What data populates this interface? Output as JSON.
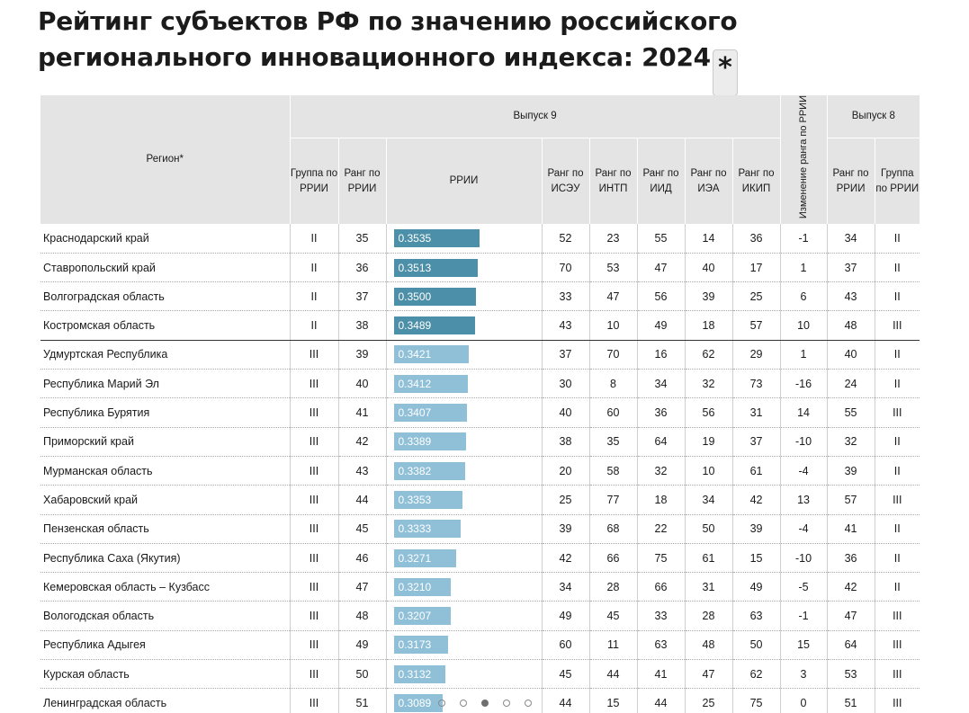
{
  "title": "Рейтинг субъектов РФ по значению российского регионального инновационного индекса: 2024",
  "title_asterisk": "*",
  "colors": {
    "group_ii": "#4c8fa8",
    "group_iii": "#8fc0d8",
    "header_bg": "#e4e4e4"
  },
  "header": {
    "region": "Регион*",
    "issue9": "Выпуск 9",
    "issue8": "Выпуск 8",
    "change": "Изменение ранга по РРИИ",
    "columns": [
      "Группа по РРИИ",
      "Ранг по РРИИ",
      "РРИИ",
      "Ранг по ИСЭУ",
      "Ранг по ИНТП",
      "Ранг по ИИД",
      "Ранг по ИЭА",
      "Ранг по ИКИП"
    ],
    "issue8_columns": [
      "Ранг по РРИИ",
      "Группа по РРИИ"
    ]
  },
  "rows": [
    {
      "region": "Краснодарский край",
      "group": "II",
      "rank": "35",
      "rrii": "0.3535",
      "value": 0.3535,
      "iseu": "52",
      "intp": "23",
      "iid": "55",
      "iea": "14",
      "ikip": "36",
      "change": "-1",
      "rank8": "34",
      "group8": "II"
    },
    {
      "region": "Ставропольский край",
      "group": "II",
      "rank": "36",
      "rrii": "0.3513",
      "value": 0.3513,
      "iseu": "70",
      "intp": "53",
      "iid": "47",
      "iea": "40",
      "ikip": "17",
      "change": "1",
      "rank8": "37",
      "group8": "II"
    },
    {
      "region": "Волгоградская область",
      "group": "II",
      "rank": "37",
      "rrii": "0.3500",
      "value": 0.35,
      "iseu": "33",
      "intp": "47",
      "iid": "56",
      "iea": "39",
      "ikip": "25",
      "change": "6",
      "rank8": "43",
      "group8": "II"
    },
    {
      "region": "Костромская область",
      "group": "II",
      "rank": "38",
      "rrii": "0.3489",
      "value": 0.3489,
      "iseu": "43",
      "intp": "10",
      "iid": "49",
      "iea": "18",
      "ikip": "57",
      "change": "10",
      "rank8": "48",
      "group8": "III"
    },
    {
      "region": "Удмуртская Республика",
      "group": "III",
      "rank": "39",
      "rrii": "0.3421",
      "value": 0.3421,
      "iseu": "37",
      "intp": "70",
      "iid": "16",
      "iea": "62",
      "ikip": "29",
      "change": "1",
      "rank8": "40",
      "group8": "II"
    },
    {
      "region": "Республика Марий Эл",
      "group": "III",
      "rank": "40",
      "rrii": "0.3412",
      "value": 0.3412,
      "iseu": "30",
      "intp": "8",
      "iid": "34",
      "iea": "32",
      "ikip": "73",
      "change": "-16",
      "rank8": "24",
      "group8": "II"
    },
    {
      "region": "Республика Бурятия",
      "group": "III",
      "rank": "41",
      "rrii": "0.3407",
      "value": 0.3407,
      "iseu": "40",
      "intp": "60",
      "iid": "36",
      "iea": "56",
      "ikip": "31",
      "change": "14",
      "rank8": "55",
      "group8": "III"
    },
    {
      "region": "Приморский край",
      "group": "III",
      "rank": "42",
      "rrii": "0.3389",
      "value": 0.3389,
      "iseu": "38",
      "intp": "35",
      "iid": "64",
      "iea": "19",
      "ikip": "37",
      "change": "-10",
      "rank8": "32",
      "group8": "II"
    },
    {
      "region": "Мурманская область",
      "group": "III",
      "rank": "43",
      "rrii": "0.3382",
      "value": 0.3382,
      "iseu": "20",
      "intp": "58",
      "iid": "32",
      "iea": "10",
      "ikip": "61",
      "change": "-4",
      "rank8": "39",
      "group8": "II"
    },
    {
      "region": "Хабаровский край",
      "group": "III",
      "rank": "44",
      "rrii": "0.3353",
      "value": 0.3353,
      "iseu": "25",
      "intp": "77",
      "iid": "18",
      "iea": "34",
      "ikip": "42",
      "change": "13",
      "rank8": "57",
      "group8": "III"
    },
    {
      "region": "Пензенская область",
      "group": "III",
      "rank": "45",
      "rrii": "0.3333",
      "value": 0.3333,
      "iseu": "39",
      "intp": "68",
      "iid": "22",
      "iea": "50",
      "ikip": "39",
      "change": "-4",
      "rank8": "41",
      "group8": "II"
    },
    {
      "region": "Республика Саха (Якутия)",
      "group": "III",
      "rank": "46",
      "rrii": "0.3271",
      "value": 0.3271,
      "iseu": "42",
      "intp": "66",
      "iid": "75",
      "iea": "61",
      "ikip": "15",
      "change": "-10",
      "rank8": "36",
      "group8": "II"
    },
    {
      "region": "Кемеровская область – Кузбасс",
      "group": "III",
      "rank": "47",
      "rrii": "0.3210",
      "value": 0.321,
      "iseu": "34",
      "intp": "28",
      "iid": "66",
      "iea": "31",
      "ikip": "49",
      "change": "-5",
      "rank8": "42",
      "group8": "II"
    },
    {
      "region": "Вологодская область",
      "group": "III",
      "rank": "48",
      "rrii": "0.3207",
      "value": 0.3207,
      "iseu": "49",
      "intp": "45",
      "iid": "33",
      "iea": "28",
      "ikip": "63",
      "change": "-1",
      "rank8": "47",
      "group8": "III"
    },
    {
      "region": "Республика Адыгея",
      "group": "III",
      "rank": "49",
      "rrii": "0.3173",
      "value": 0.3173,
      "iseu": "60",
      "intp": "11",
      "iid": "63",
      "iea": "48",
      "ikip": "50",
      "change": "15",
      "rank8": "64",
      "group8": "III"
    },
    {
      "region": "Курская область",
      "group": "III",
      "rank": "50",
      "rrii": "0.3132",
      "value": 0.3132,
      "iseu": "45",
      "intp": "44",
      "iid": "41",
      "iea": "47",
      "ikip": "62",
      "change": "3",
      "rank8": "53",
      "group8": "III"
    },
    {
      "region": "Ленинградская область",
      "group": "III",
      "rank": "51",
      "rrii": "0.3089",
      "value": 0.3089,
      "iseu": "44",
      "intp": "15",
      "iid": "44",
      "iea": "25",
      "ikip": "75",
      "change": "0",
      "rank8": "51",
      "group8": "III"
    }
  ],
  "pagination": {
    "pages": 5,
    "current": 3
  }
}
